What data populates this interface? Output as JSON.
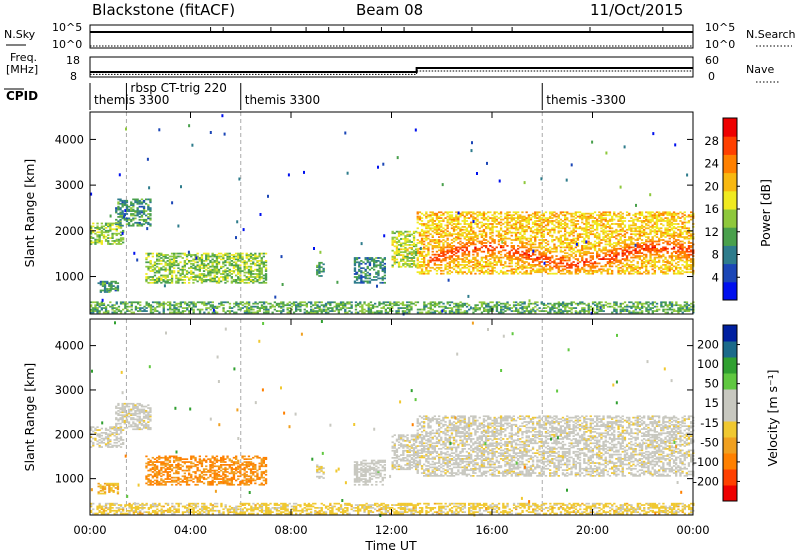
{
  "header": {
    "station": "Blackstone (fitACF)",
    "beam": "Beam 08",
    "date": "11/Oct/2015"
  },
  "strips": {
    "nsky_label": "N.Sky",
    "nsearch_label": "N.Search",
    "nsky_ticks": [
      "10^5",
      "10^0"
    ],
    "nsky_ticks_right": [
      "10^5",
      "10^0"
    ],
    "freq_label_line1": "Freq.",
    "freq_label_line2": "[MHz]",
    "freq_ticks": [
      "18",
      "8"
    ],
    "nave_label": "Nave",
    "nave_ticks": [
      "60",
      "0"
    ],
    "cpid_label": "CPID",
    "freq_level_mhz": [
      {
        "from_hour": 0,
        "to_hour": 13.0,
        "value": 10.5
      },
      {
        "from_hour": 13.0,
        "to_hour": 24,
        "value": 12.5
      }
    ],
    "nave_level": [
      {
        "from_hour": 0,
        "to_hour": 13.0,
        "value": 8
      },
      {
        "from_hour": 13.0,
        "to_hour": 24,
        "value": 18
      }
    ]
  },
  "cpid_segments": [
    {
      "label": "themis 3300",
      "start_hour": 0.0
    },
    {
      "label": "rbsp CT-trig 220",
      "start_hour": 1.45
    },
    {
      "label": "themis 3300",
      "start_hour": 6.0
    },
    {
      "label": "themis -3300",
      "start_hour": 18.0
    }
  ],
  "chart_data": [
    {
      "type": "heatmap",
      "quantity": "Power",
      "ylabel": "Slant Range [km]",
      "xlabel": "Time UT",
      "xlim_hours": [
        0,
        24
      ],
      "ylim_km": [
        180,
        4600
      ],
      "yticks": [
        1000,
        2000,
        3000,
        4000
      ],
      "xtick_labels": [
        "00:00",
        "04:00",
        "08:00",
        "12:00",
        "16:00",
        "20:00",
        "00:00"
      ],
      "colorbar_label": "Power [dB]",
      "colorbar_ticks": [
        "28",
        "24",
        "20",
        "16",
        "12",
        "8",
        "4"
      ],
      "colorbar_range": [
        0,
        32
      ],
      "colorbar_colors": [
        "#0010ee",
        "#1b46b6",
        "#2e7c8c",
        "#49a04c",
        "#8ec83c",
        "#f0ea20",
        "#f8b810",
        "#ff8000",
        "#ff4000",
        "#ee0000"
      ],
      "echo_regions": [
        {
          "t_start": 0.0,
          "t_end": 1.3,
          "r_lo": 1700,
          "r_hi": 2150,
          "power_db": 14
        },
        {
          "t_start": 1.0,
          "t_end": 2.4,
          "r_lo": 2100,
          "r_hi": 2700,
          "power_db": 10
        },
        {
          "t_start": 0.3,
          "t_end": 1.1,
          "r_lo": 650,
          "r_hi": 900,
          "power_db": 10
        },
        {
          "t_start": 2.2,
          "t_end": 7.0,
          "r_lo": 850,
          "r_hi": 1500,
          "power_db": 14
        },
        {
          "t_start": 9.0,
          "t_end": 9.3,
          "r_lo": 1000,
          "r_hi": 1300,
          "power_db": 10
        },
        {
          "t_start": 10.5,
          "t_end": 11.7,
          "r_lo": 850,
          "r_hi": 1400,
          "power_db": 9
        },
        {
          "t_start": 12.0,
          "t_end": 13.0,
          "r_lo": 1200,
          "r_hi": 2000,
          "power_db": 16
        },
        {
          "t_start": 13.0,
          "t_end": 24.0,
          "r_lo": 1050,
          "r_hi": 2400,
          "power_db": 20
        },
        {
          "t_start": 0.0,
          "t_end": 24.0,
          "r_lo": 200,
          "r_hi": 450,
          "power_db": 12
        }
      ],
      "peak_band": {
        "t_start": 13.5,
        "t_end": 24.0,
        "r_center": 1450,
        "r_width": 250,
        "power_db": 28
      }
    },
    {
      "type": "heatmap",
      "quantity": "Velocity",
      "ylabel": "Slant Range [km]",
      "xlabel": "Time UT",
      "xlim_hours": [
        0,
        24
      ],
      "ylim_km": [
        180,
        4600
      ],
      "yticks": [
        1000,
        2000,
        3000,
        4000
      ],
      "xtick_labels": [
        "00:00",
        "04:00",
        "08:00",
        "12:00",
        "16:00",
        "20:00",
        "00:00"
      ],
      "colorbar_label": "Velocity [m s⁻¹]",
      "colorbar_ticks": [
        "200",
        "100",
        "50",
        "15",
        "-15",
        "-50",
        "-100",
        "-200"
      ],
      "colorbar_range": [
        -250,
        250
      ],
      "colorbar_colors": [
        "#ee0000",
        "#ff4000",
        "#ff8000",
        "#f0a020",
        "#f0c830",
        "#c8c8c0",
        "#c8c8c0",
        "#60c840",
        "#30a030",
        "#1b6a8a",
        "#0020a0"
      ],
      "echo_regions": [
        {
          "t_start": 0.0,
          "t_end": 1.3,
          "r_lo": 1700,
          "r_hi": 2150,
          "velocity": 0
        },
        {
          "t_start": 1.0,
          "t_end": 2.4,
          "r_lo": 2100,
          "r_hi": 2700,
          "velocity": 0
        },
        {
          "t_start": 0.3,
          "t_end": 1.1,
          "r_lo": 650,
          "r_hi": 900,
          "velocity": -80
        },
        {
          "t_start": 2.2,
          "t_end": 7.0,
          "r_lo": 850,
          "r_hi": 1500,
          "velocity": -120
        },
        {
          "t_start": 9.0,
          "t_end": 9.3,
          "r_lo": 1000,
          "r_hi": 1300,
          "velocity": 0
        },
        {
          "t_start": 10.5,
          "t_end": 11.7,
          "r_lo": 850,
          "r_hi": 1400,
          "velocity": 40
        },
        {
          "t_start": 12.0,
          "t_end": 13.0,
          "r_lo": 1200,
          "r_hi": 2000,
          "velocity": 0
        },
        {
          "t_start": 13.0,
          "t_end": 24.0,
          "r_lo": 1050,
          "r_hi": 2400,
          "velocity": 0
        },
        {
          "t_start": 0.0,
          "t_end": 24.0,
          "r_lo": 200,
          "r_hi": 450,
          "velocity": -40
        }
      ]
    }
  ]
}
